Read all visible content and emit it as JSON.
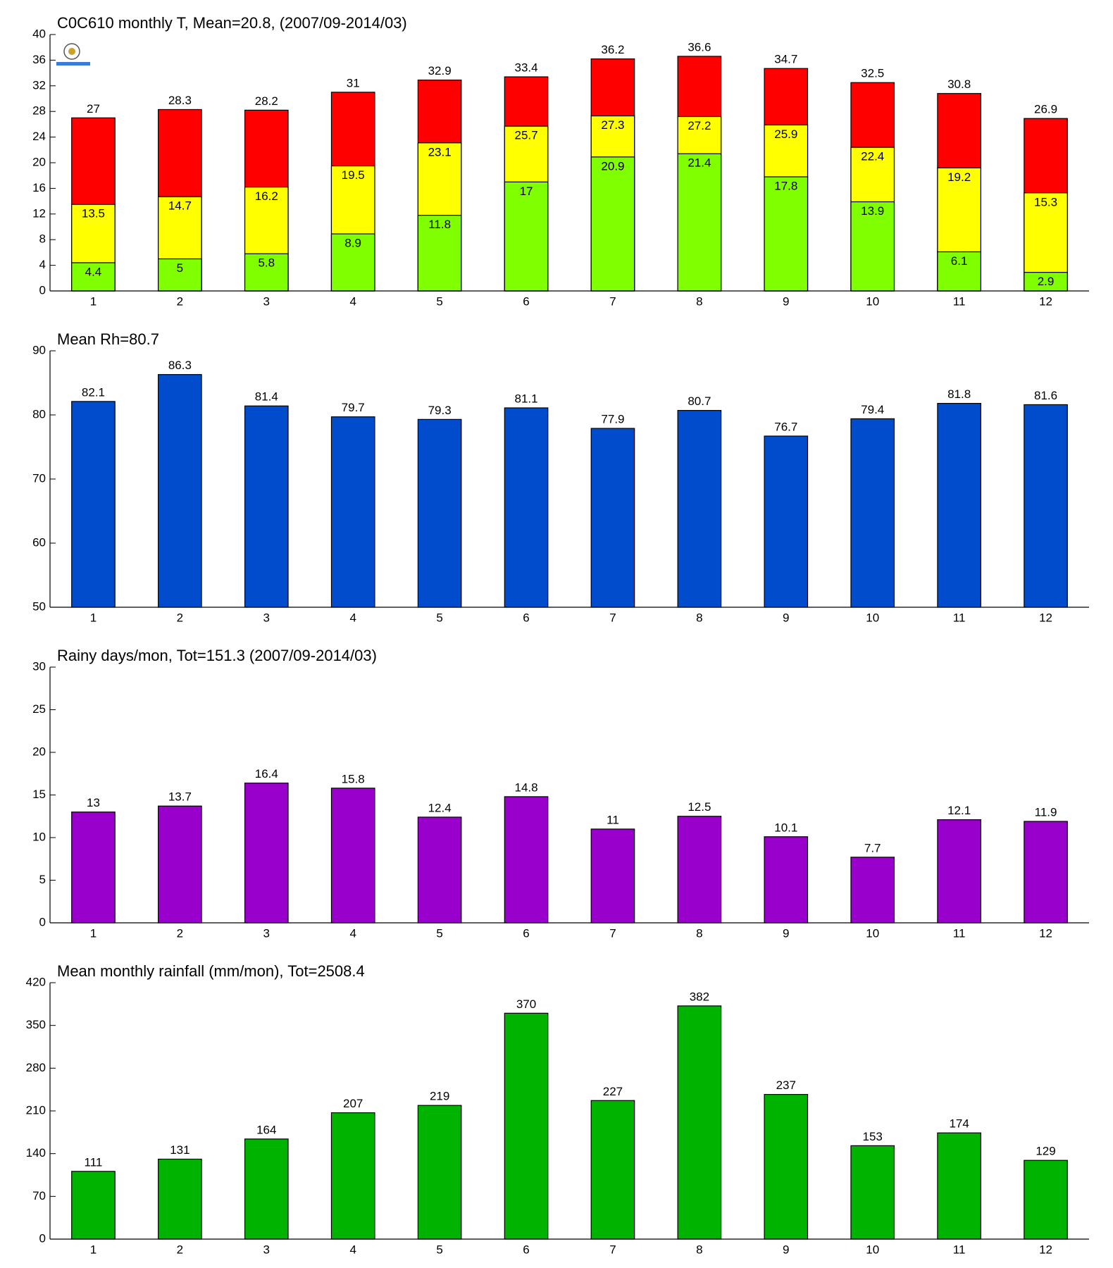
{
  "chart_data": [
    {
      "type": "overlay_bar",
      "title": "C0C610 monthly T, Mean=20.8, (2007/09-2014/03)",
      "categories": [
        1,
        2,
        3,
        4,
        5,
        6,
        7,
        8,
        9,
        10,
        11,
        12
      ],
      "series": [
        {
          "color": "#ff0000",
          "values": [
            27,
            28.3,
            28.2,
            31,
            32.9,
            33.4,
            36.2,
            36.6,
            34.7,
            32.5,
            30.8,
            26.9
          ]
        },
        {
          "color": "#ffff00",
          "values": [
            13.5,
            14.7,
            16.2,
            19.5,
            23.1,
            25.7,
            27.3,
            27.2,
            25.9,
            22.4,
            19.2,
            15.3
          ]
        },
        {
          "color": "#80ff00",
          "values": [
            4.4,
            5,
            5.8,
            8.9,
            11.8,
            17,
            20.9,
            21.4,
            17.8,
            13.9,
            6.1,
            2.9
          ]
        }
      ],
      "ylim": [
        0,
        40
      ],
      "yticks": [
        0,
        4,
        8,
        12,
        16,
        20,
        24,
        28,
        32,
        36,
        40
      ]
    },
    {
      "type": "bar",
      "title": "Mean Rh=80.7",
      "categories": [
        1,
        2,
        3,
        4,
        5,
        6,
        7,
        8,
        9,
        10,
        11,
        12
      ],
      "values": [
        82.1,
        86.3,
        81.4,
        79.7,
        79.3,
        81.1,
        77.9,
        80.7,
        76.7,
        79.4,
        81.8,
        81.6
      ],
      "color": "#004ccc",
      "ylim": [
        50,
        90
      ],
      "yticks": [
        50,
        60,
        70,
        80,
        90
      ]
    },
    {
      "type": "bar",
      "title": "Rainy days/mon, Tot=151.3 (2007/09-2014/03)",
      "categories": [
        1,
        2,
        3,
        4,
        5,
        6,
        7,
        8,
        9,
        10,
        11,
        12
      ],
      "values": [
        13,
        13.7,
        16.4,
        15.8,
        12.4,
        14.8,
        11,
        12.5,
        10.1,
        7.7,
        12.1,
        11.9
      ],
      "color": "#9900cc",
      "ylim": [
        0,
        30
      ],
      "yticks": [
        0,
        5,
        10,
        15,
        20,
        25,
        30
      ]
    },
    {
      "type": "bar",
      "title": "Mean monthly rainfall (mm/mon), Tot=2508.4",
      "categories": [
        1,
        2,
        3,
        4,
        5,
        6,
        7,
        8,
        9,
        10,
        11,
        12
      ],
      "values": [
        111,
        131,
        164,
        207,
        219,
        370,
        227,
        382,
        237,
        153,
        174,
        129
      ],
      "color": "#00b300",
      "ylim": [
        0,
        420
      ],
      "yticks": [
        0,
        70,
        140,
        210,
        280,
        350,
        420
      ]
    }
  ]
}
